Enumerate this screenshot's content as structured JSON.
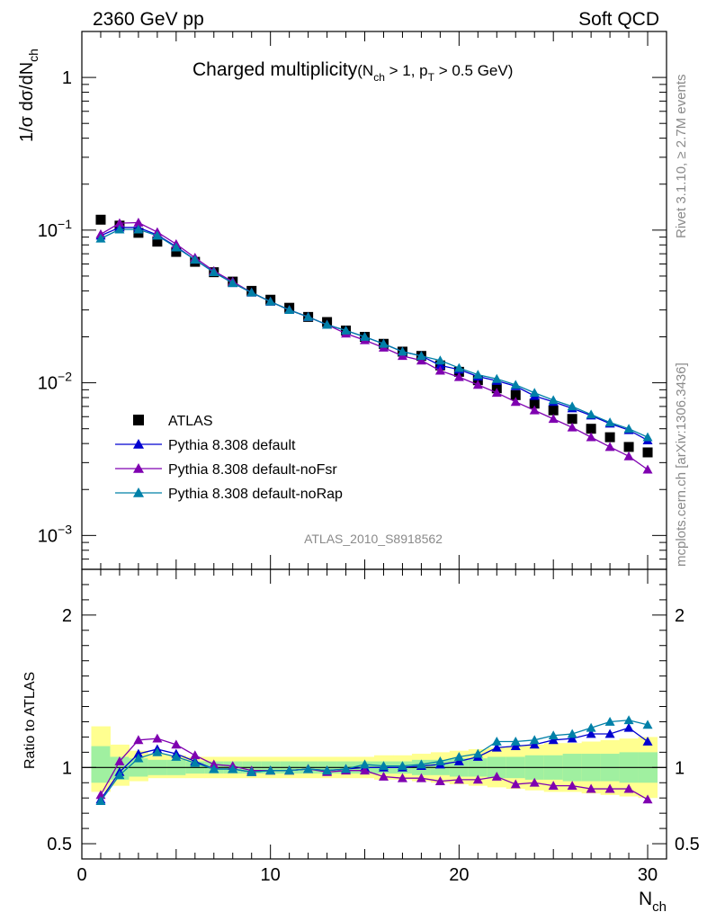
{
  "header": {
    "energy": "2360 GeV pp",
    "process": "Soft QCD"
  },
  "side_text": {
    "rivet": "Rivet 3.1.10, ≥ 2.7M events",
    "source": "mcplots.cern.ch [arXiv:1306.3436]"
  },
  "plot_title": {
    "main": "Charged multiplicity",
    "open": "(N",
    "sub_ch": "ch",
    "mid": " > 1, p",
    "sub_t": "T",
    "tail": " > 0.5 GeV)"
  },
  "analysis_label": "ATLAS_2010_S8918562",
  "axes": {
    "y_main_label": {
      "prefix": "1/σ dσ/dN",
      "sub": "ch"
    },
    "y_ratio_label": "Ratio to ATLAS",
    "x_label": {
      "main": "N",
      "sub": "ch"
    }
  },
  "legend": [
    {
      "label": "ATLAS",
      "marker": "square",
      "color": "#000000"
    },
    {
      "label": "Pythia 8.308 default",
      "marker": "triangle",
      "color": "#0000d0"
    },
    {
      "label": "Pythia 8.308 default-noFsr",
      "marker": "triangle",
      "color": "#7f00b0"
    },
    {
      "label": "Pythia 8.308 default-noRap",
      "marker": "triangle",
      "color": "#0080a8"
    }
  ],
  "chart_data": [
    {
      "type": "scatter",
      "title": "Charged multiplicity (Nch > 1, pT > 0.5 GeV)",
      "xlabel": "Nch",
      "ylabel": "1/σ dσ/dNch",
      "yscale": "log",
      "xlim": [
        0,
        31
      ],
      "ylim": [
        0.0006,
        2
      ],
      "y_ticks": [
        {
          "value": 0.001,
          "base": "10",
          "exp": "−3"
        },
        {
          "value": 0.01,
          "base": "10",
          "exp": "−2"
        },
        {
          "value": 0.1,
          "base": "10",
          "exp": "−1"
        },
        {
          "value": 1,
          "base": "1",
          "exp": ""
        }
      ],
      "x_ticks": [
        0,
        10,
        20,
        30
      ],
      "legend_position": "bottom-left",
      "series": [
        {
          "name": "ATLAS",
          "marker": "square",
          "color": "#000000",
          "x": [
            1,
            2,
            3,
            4,
            5,
            6,
            7,
            8,
            9,
            10,
            11,
            12,
            13,
            14,
            15,
            16,
            17,
            18,
            19,
            20,
            21,
            22,
            23,
            24,
            25,
            26,
            27,
            28,
            29,
            30
          ],
          "values": [
            0.117,
            0.107,
            0.096,
            0.084,
            0.072,
            0.062,
            0.053,
            0.046,
            0.04,
            0.035,
            0.031,
            0.027,
            0.025,
            0.022,
            0.02,
            0.018,
            0.016,
            0.015,
            0.013,
            0.0118,
            0.0104,
            0.0092,
            0.0083,
            0.0073,
            0.0066,
            0.0058,
            0.005,
            0.0044,
            0.0038,
            0.0035
          ]
        },
        {
          "name": "Pythia 8.308 default",
          "marker": "triangle",
          "color": "#0000d0",
          "x": [
            1,
            2,
            3,
            4,
            5,
            6,
            7,
            8,
            9,
            10,
            11,
            12,
            13,
            14,
            15,
            16,
            17,
            18,
            19,
            20,
            21,
            22,
            23,
            24,
            25,
            26,
            27,
            28,
            29,
            30
          ],
          "values": [
            0.092,
            0.104,
            0.104,
            0.093,
            0.078,
            0.064,
            0.053,
            0.045,
            0.039,
            0.034,
            0.03,
            0.027,
            0.024,
            0.022,
            0.02,
            0.018,
            0.016,
            0.015,
            0.013,
            0.0122,
            0.011,
            0.0103,
            0.0095,
            0.0082,
            0.0075,
            0.0068,
            0.0061,
            0.0054,
            0.0049,
            0.0042
          ]
        },
        {
          "name": "Pythia 8.308 default-noFsr",
          "marker": "triangle",
          "color": "#7f00b0",
          "x": [
            1,
            2,
            3,
            4,
            5,
            6,
            7,
            8,
            9,
            10,
            11,
            12,
            13,
            14,
            15,
            16,
            17,
            18,
            19,
            20,
            21,
            22,
            23,
            24,
            25,
            26,
            27,
            28,
            29,
            30
          ],
          "values": [
            0.094,
            0.111,
            0.112,
            0.097,
            0.081,
            0.066,
            0.054,
            0.046,
            0.039,
            0.034,
            0.03,
            0.027,
            0.024,
            0.021,
            0.019,
            0.017,
            0.015,
            0.014,
            0.012,
            0.0109,
            0.0097,
            0.0086,
            0.0075,
            0.0066,
            0.0058,
            0.0051,
            0.0044,
            0.0038,
            0.0033,
            0.0027
          ]
        },
        {
          "name": "Pythia 8.308 default-noRap",
          "marker": "triangle",
          "color": "#0080a8",
          "x": [
            1,
            2,
            3,
            4,
            5,
            6,
            7,
            8,
            9,
            10,
            11,
            12,
            13,
            14,
            15,
            16,
            17,
            18,
            19,
            20,
            21,
            22,
            23,
            24,
            25,
            26,
            27,
            28,
            29,
            30
          ],
          "values": [
            0.088,
            0.101,
            0.101,
            0.092,
            0.077,
            0.064,
            0.053,
            0.045,
            0.039,
            0.034,
            0.03,
            0.027,
            0.024,
            0.022,
            0.02,
            0.018,
            0.016,
            0.015,
            0.014,
            0.0125,
            0.0113,
            0.0106,
            0.0097,
            0.0086,
            0.0077,
            0.007,
            0.0062,
            0.0055,
            0.005,
            0.0044
          ]
        }
      ]
    },
    {
      "type": "line",
      "ylabel": "Ratio to ATLAS",
      "xlabel": "Nch",
      "xlim": [
        0,
        31
      ],
      "ylim": [
        0.4,
        2.3
      ],
      "y_ticks": [
        0.5,
        1,
        2
      ],
      "x_ticks": [
        0,
        10,
        20,
        30
      ],
      "reference_line": 1,
      "bands": {
        "stat_color": "#a0f0a0",
        "total_color": "#ffff90",
        "x": [
          1,
          2,
          3,
          4,
          5,
          6,
          7,
          8,
          9,
          10,
          11,
          12,
          13,
          14,
          15,
          16,
          17,
          18,
          19,
          20,
          21,
          22,
          23,
          24,
          25,
          26,
          27,
          28,
          29,
          30
        ],
        "stat_low": [
          0.9,
          0.92,
          0.94,
          0.95,
          0.95,
          0.96,
          0.96,
          0.96,
          0.96,
          0.96,
          0.96,
          0.96,
          0.96,
          0.96,
          0.96,
          0.96,
          0.96,
          0.95,
          0.95,
          0.94,
          0.94,
          0.93,
          0.93,
          0.92,
          0.92,
          0.91,
          0.91,
          0.91,
          0.9,
          0.9
        ],
        "stat_high": [
          1.14,
          1.07,
          1.06,
          1.05,
          1.05,
          1.04,
          1.04,
          1.04,
          1.04,
          1.04,
          1.04,
          1.04,
          1.04,
          1.04,
          1.04,
          1.04,
          1.04,
          1.05,
          1.05,
          1.06,
          1.06,
          1.07,
          1.07,
          1.08,
          1.08,
          1.09,
          1.09,
          1.09,
          1.1,
          1.1
        ],
        "total_low": [
          0.84,
          0.88,
          0.91,
          0.93,
          0.93,
          0.93,
          0.93,
          0.93,
          0.93,
          0.93,
          0.93,
          0.93,
          0.93,
          0.93,
          0.93,
          0.92,
          0.92,
          0.91,
          0.9,
          0.89,
          0.88,
          0.87,
          0.86,
          0.85,
          0.84,
          0.84,
          0.83,
          0.82,
          0.81,
          0.8
        ],
        "total_high": [
          1.27,
          1.15,
          1.11,
          1.09,
          1.08,
          1.07,
          1.07,
          1.07,
          1.07,
          1.07,
          1.07,
          1.07,
          1.07,
          1.07,
          1.07,
          1.08,
          1.08,
          1.09,
          1.1,
          1.11,
          1.12,
          1.13,
          1.14,
          1.15,
          1.16,
          1.16,
          1.17,
          1.18,
          1.19,
          1.2
        ]
      },
      "series": [
        {
          "name": "Pythia 8.308 default",
          "color": "#0000d0",
          "x": [
            1,
            2,
            3,
            4,
            5,
            6,
            7,
            8,
            9,
            10,
            11,
            12,
            13,
            14,
            15,
            16,
            17,
            18,
            19,
            20,
            21,
            22,
            23,
            24,
            25,
            26,
            27,
            28,
            29,
            30
          ],
          "values": [
            0.79,
            0.97,
            1.09,
            1.12,
            1.09,
            1.04,
            0.99,
            0.99,
            0.97,
            0.98,
            0.98,
            0.99,
            0.98,
            0.99,
            1.0,
            1.0,
            1.0,
            1.01,
            1.02,
            1.04,
            1.07,
            1.13,
            1.14,
            1.15,
            1.18,
            1.19,
            1.22,
            1.22,
            1.26,
            1.17
          ]
        },
        {
          "name": "Pythia 8.308 default-noFsr",
          "color": "#7f00b0",
          "x": [
            1,
            2,
            3,
            4,
            5,
            6,
            7,
            8,
            9,
            10,
            11,
            12,
            13,
            14,
            15,
            16,
            17,
            18,
            19,
            20,
            21,
            22,
            23,
            24,
            25,
            26,
            27,
            28,
            29,
            30
          ],
          "values": [
            0.82,
            1.04,
            1.18,
            1.19,
            1.15,
            1.08,
            1.02,
            1.01,
            0.98,
            0.98,
            0.98,
            0.99,
            0.97,
            0.98,
            0.98,
            0.94,
            0.93,
            0.93,
            0.91,
            0.92,
            0.92,
            0.94,
            0.89,
            0.9,
            0.88,
            0.88,
            0.86,
            0.86,
            0.86,
            0.79
          ]
        },
        {
          "name": "Pythia 8.308 default-noRap",
          "color": "#0080a8",
          "x": [
            1,
            2,
            3,
            4,
            5,
            6,
            7,
            8,
            9,
            10,
            11,
            12,
            13,
            14,
            15,
            16,
            17,
            18,
            19,
            20,
            21,
            22,
            23,
            24,
            25,
            26,
            27,
            28,
            29,
            30
          ],
          "values": [
            0.78,
            0.95,
            1.06,
            1.1,
            1.07,
            1.03,
            0.99,
            0.99,
            0.97,
            0.98,
            0.98,
            0.99,
            0.98,
            0.99,
            1.02,
            1.01,
            1.01,
            1.02,
            1.04,
            1.07,
            1.09,
            1.17,
            1.17,
            1.18,
            1.21,
            1.22,
            1.26,
            1.3,
            1.31,
            1.28
          ]
        }
      ]
    }
  ]
}
